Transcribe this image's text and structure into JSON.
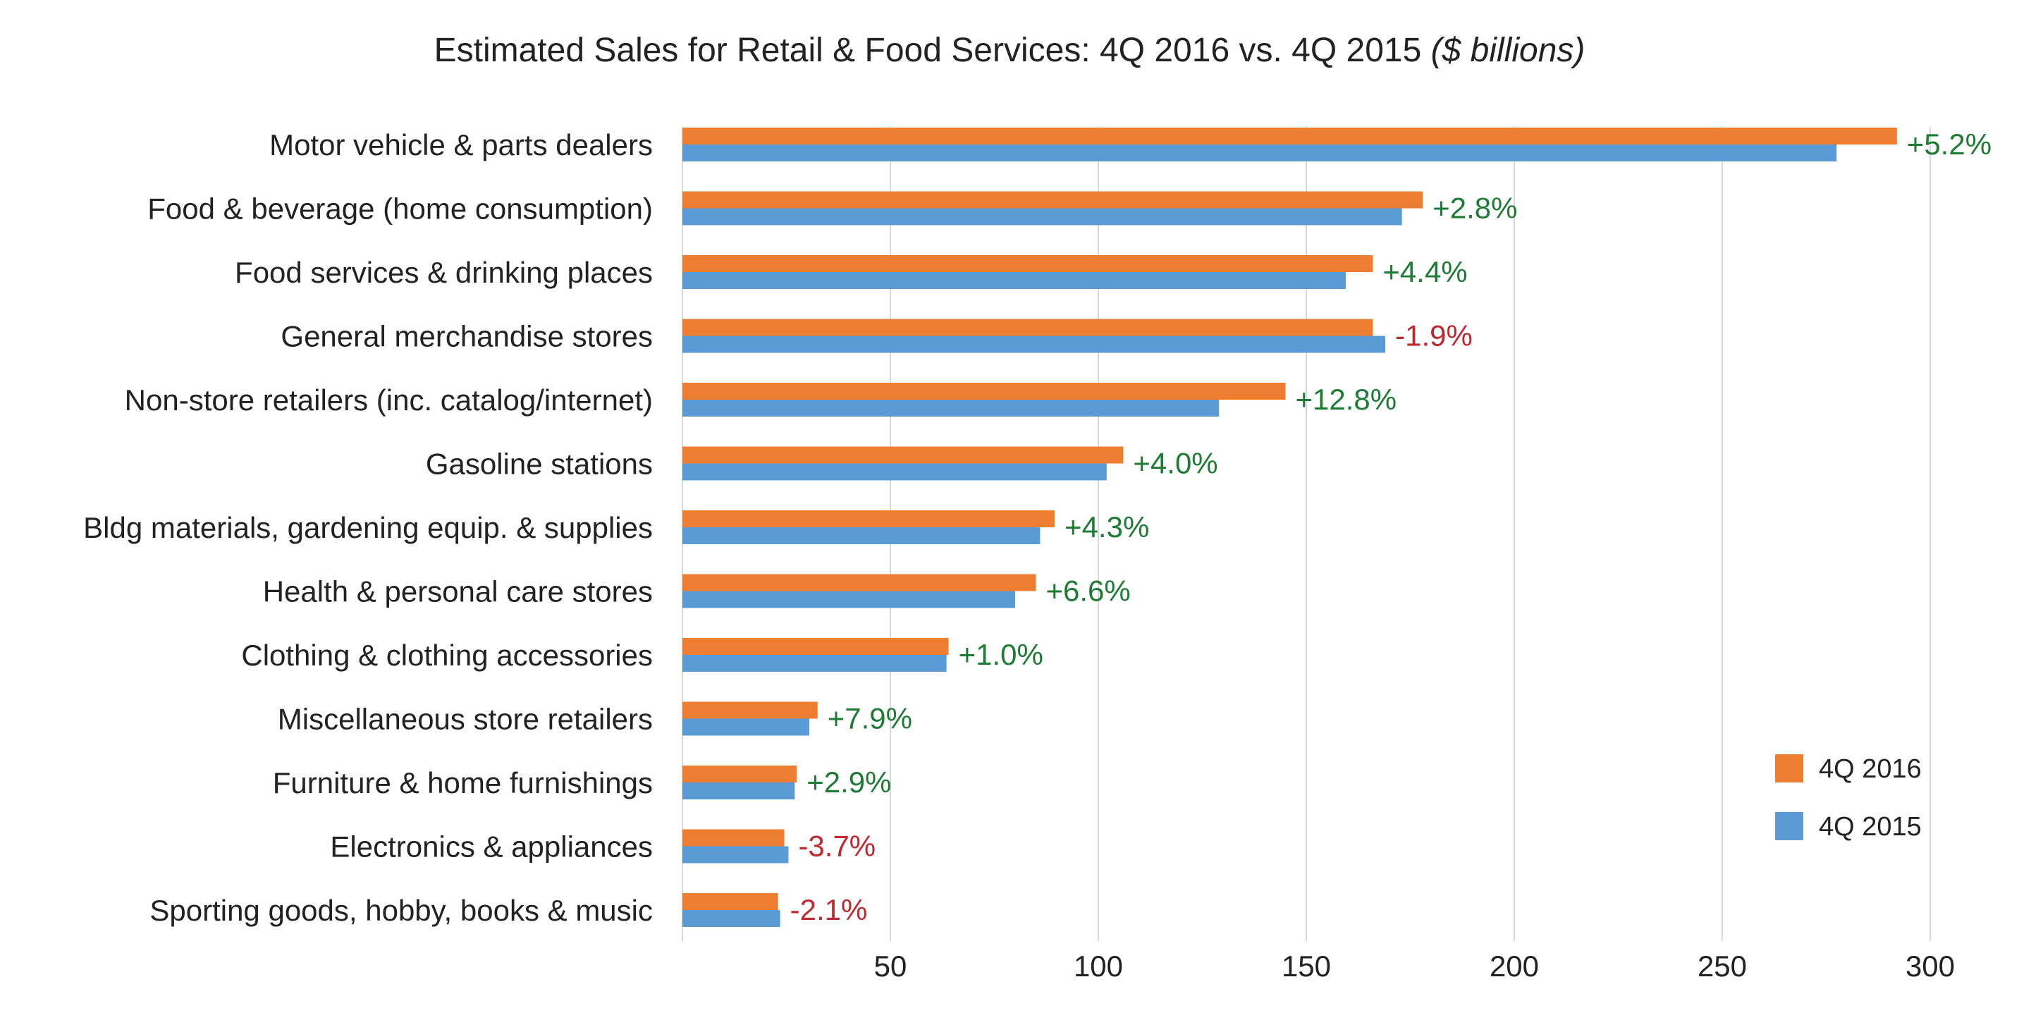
{
  "chart_data": {
    "type": "bar",
    "orientation": "horizontal",
    "title": "Estimated Sales for Retail & Food Services: 4Q 2016 vs. 4Q 2015",
    "title_unit": "($ billions)",
    "xlabel": "",
    "ylabel": "",
    "xlim": [
      0,
      300
    ],
    "x_ticks": [
      50,
      100,
      150,
      200,
      250,
      300
    ],
    "grid": "vertical",
    "legend_position": "bottom-right",
    "categories": [
      "Motor vehicle & parts dealers",
      "Food & beverage (home consumption)",
      "Food services & drinking places",
      "General merchandise stores",
      "Non-store retailers (inc. catalog/internet)",
      "Gasoline stations",
      "Bldg materials, gardening equip. & supplies",
      "Health & personal care stores",
      "Clothing & clothing accessories",
      "Miscellaneous store retailers",
      "Furniture & home furnishings",
      "Electronics & appliances",
      "Sporting goods, hobby, books & music"
    ],
    "series": [
      {
        "name": "4Q 2016",
        "color": "#ED7D31",
        "values": [
          292,
          178,
          166,
          166,
          145,
          106,
          89.5,
          85,
          64,
          32.5,
          27.5,
          24.5,
          23
        ]
      },
      {
        "name": "4Q 2015",
        "color": "#5B9BD5",
        "values": [
          277.5,
          173,
          159.5,
          169,
          129,
          102,
          86,
          80,
          63.5,
          30.5,
          27,
          25.5,
          23.5
        ]
      }
    ],
    "change_labels": [
      "+5.2%",
      "+2.8%",
      "+4.4%",
      "-1.9%",
      "+12.8%",
      "+4.0%",
      "+4.3%",
      "+6.6%",
      "+1.0%",
      "+7.9%",
      "+2.9%",
      "-3.7%",
      "-2.1%"
    ],
    "positive_color": "#1E7B34",
    "negative_color": "#C0282D",
    "grid_color": "#D9D9D9"
  }
}
